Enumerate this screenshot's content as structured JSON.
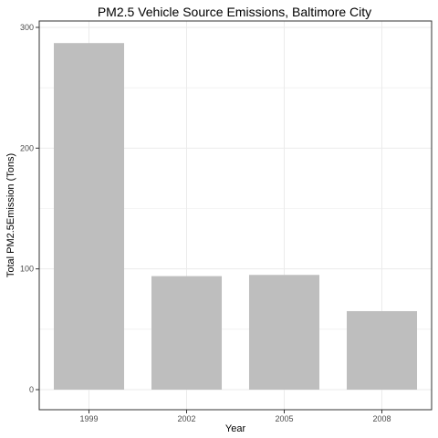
{
  "chart_data": {
    "type": "bar",
    "title": "PM2.5 Vehicle Source Emissions, Baltimore City",
    "xlabel": "Year",
    "ylabel": "Total PM2.5Emission (Tons)",
    "categories": [
      "1999",
      "2002",
      "2005",
      "2008"
    ],
    "values": [
      287,
      94,
      95,
      65
    ],
    "ylim": [
      0,
      300
    ],
    "yticks": [
      0,
      100,
      200,
      300
    ],
    "grid": true,
    "legend": "none",
    "colors": {
      "bar": "#bebebe",
      "grid": "#ebebeb",
      "border": "#333333",
      "background": "#ffffff"
    }
  }
}
